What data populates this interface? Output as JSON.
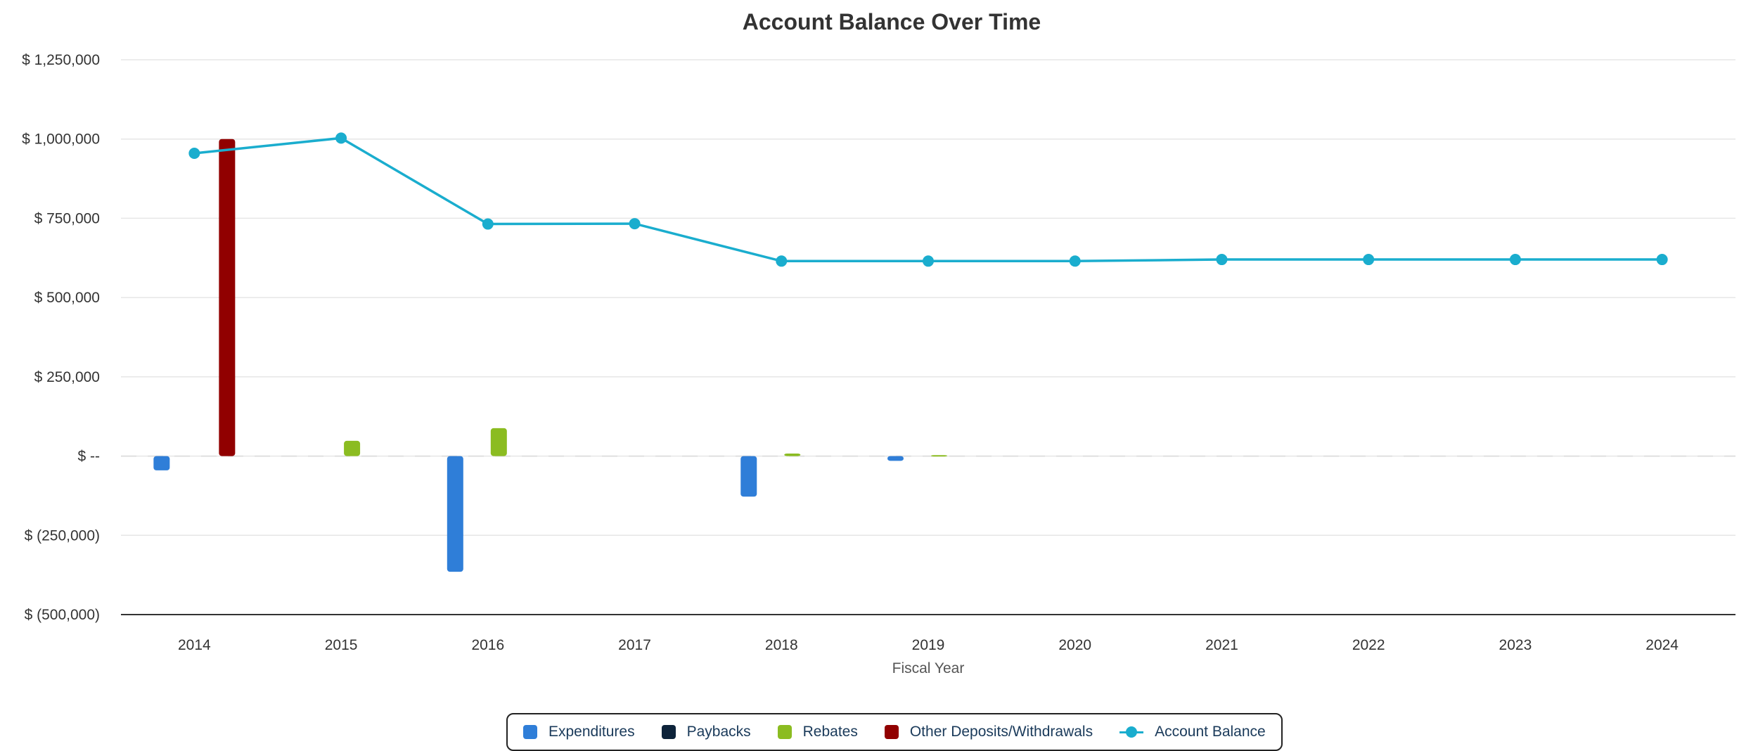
{
  "chart_data": {
    "type": "bar",
    "title": "Account Balance Over Time",
    "xlabel": "Fiscal Year",
    "ylabel": "",
    "ylim": [
      -500000,
      1250000
    ],
    "y_ticks": [
      {
        "value": 1250000,
        "label": "$ 1,250,000"
      },
      {
        "value": 1000000,
        "label": "$ 1,000,000"
      },
      {
        "value": 750000,
        "label": "$ 750,000"
      },
      {
        "value": 500000,
        "label": "$ 500,000"
      },
      {
        "value": 250000,
        "label": "$ 250,000"
      },
      {
        "value": 0,
        "label": "$ --"
      },
      {
        "value": -250000,
        "label": "$ (250,000)"
      },
      {
        "value": -500000,
        "label": "$ (500,000)"
      }
    ],
    "categories": [
      "2014",
      "2015",
      "2016",
      "2017",
      "2018",
      "2019",
      "2020",
      "2021",
      "2022",
      "2023",
      "2024"
    ],
    "grid": true,
    "legend_position": "bottom",
    "series": [
      {
        "name": "Expenditures",
        "type": "bar",
        "color": "#2f7ed8",
        "values": [
          -45000,
          0,
          -365000,
          0,
          -128000,
          -15000,
          0,
          0,
          0,
          0,
          0
        ]
      },
      {
        "name": "Paybacks",
        "type": "bar",
        "color": "#0d233a",
        "values": [
          0,
          0,
          0,
          0,
          0,
          0,
          0,
          0,
          0,
          0,
          0
        ]
      },
      {
        "name": "Rebates",
        "type": "bar",
        "color": "#8bbc21",
        "values": [
          0,
          48000,
          88000,
          0,
          8000,
          3000,
          0,
          0,
          0,
          0,
          0
        ]
      },
      {
        "name": "Other Deposits/Withdrawals",
        "type": "bar",
        "color": "#910000",
        "values": [
          1000000,
          0,
          0,
          0,
          0,
          0,
          0,
          0,
          0,
          0,
          0
        ]
      },
      {
        "name": "Account Balance",
        "type": "line",
        "color": "#1aadce",
        "values": [
          955000,
          1003000,
          732000,
          733000,
          615000,
          615000,
          615000,
          620000,
          620000,
          620000,
          620000
        ]
      }
    ]
  }
}
